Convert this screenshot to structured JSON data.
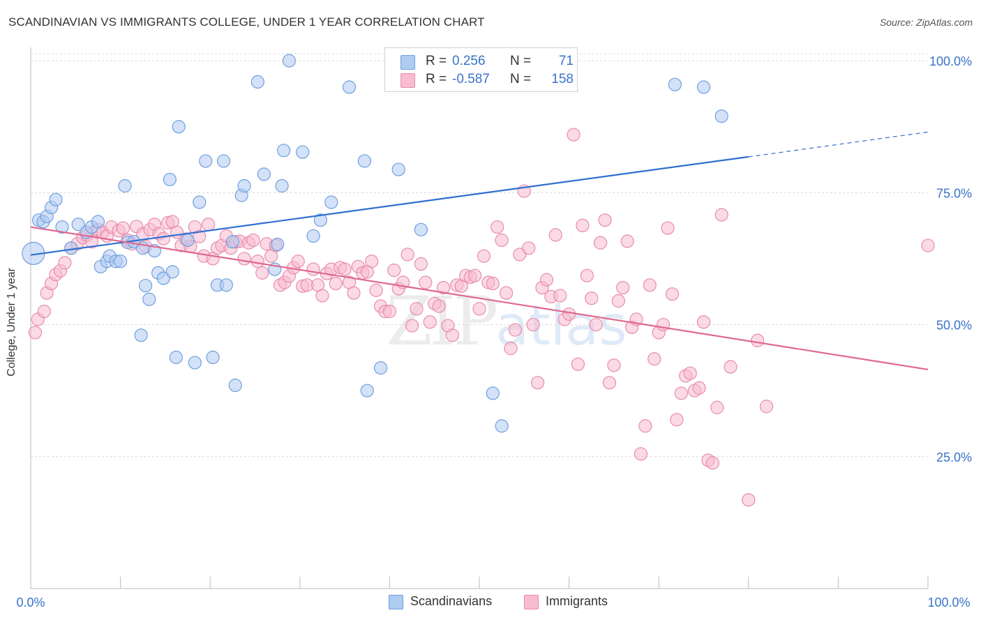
{
  "header": {
    "title": "SCANDINAVIAN VS IMMIGRANTS COLLEGE, UNDER 1 YEAR CORRELATION CHART",
    "source": "Source: ZipAtlas.com"
  },
  "legend": {
    "rows": [
      {
        "r_label": "R =",
        "r_value": " 0.256",
        "n_label": "N =",
        "n_value": "71"
      },
      {
        "r_label": "R =",
        "r_value": "-0.587",
        "n_label": "N =",
        "n_value": "158"
      }
    ]
  },
  "watermark": {
    "zip": "ZIP",
    "atlas": "atlas"
  },
  "colors": {
    "blue_fill": "#aecbf2",
    "blue_stroke": "#6f9fdc",
    "blue_line": "#2f6fd0",
    "pink_fill": "#f7bcd0",
    "pink_stroke": "#e88bab",
    "pink_line": "#e0688f",
    "axis_text": "#3a73c8",
    "grid": "#d8d8d8"
  },
  "chart_data": {
    "type": "scatter",
    "title": "SCANDINAVIAN VS IMMIGRANTS COLLEGE, UNDER 1 YEAR CORRELATION CHART",
    "xlabel": "",
    "ylabel": "College, Under 1 year",
    "xlim": [
      0,
      100
    ],
    "ylim": [
      0,
      102
    ],
    "x_tick_labels": [
      "0.0%",
      "100.0%"
    ],
    "y_ticks": [
      {
        "value": 25,
        "label": "25.0%"
      },
      {
        "value": 50,
        "label": "50.0%"
      },
      {
        "value": 75,
        "label": "75.0%"
      },
      {
        "value": 100,
        "label": "100.0%"
      }
    ],
    "x_minor_ticks": [
      0,
      10,
      20,
      30,
      40,
      50,
      60,
      70,
      80,
      90,
      100
    ],
    "grid": true,
    "series": [
      {
        "name": "Scandinavians",
        "r": 0.256,
        "n": 71,
        "trend": {
          "x0": 0,
          "y0": 63.2,
          "x1": 80,
          "y1": 81.8,
          "dash_to_x": 100,
          "dash_to_y": 86.5
        },
        "points": [
          [
            0.3,
            63.5
          ],
          [
            0.9,
            69.8
          ],
          [
            1.4,
            69.5
          ],
          [
            1.8,
            70.5
          ],
          [
            2.3,
            72.2
          ],
          [
            2.8,
            73.7
          ],
          [
            3.5,
            68.5
          ],
          [
            4.5,
            64.5
          ],
          [
            5.3,
            69.0
          ],
          [
            6.2,
            67.5
          ],
          [
            6.8,
            68.5
          ],
          [
            7.5,
            69.5
          ],
          [
            7.8,
            61.0
          ],
          [
            8.5,
            62.0
          ],
          [
            8.8,
            63.0
          ],
          [
            9.5,
            62.0
          ],
          [
            10.0,
            62.0
          ],
          [
            10.5,
            76.3
          ],
          [
            10.8,
            65.6
          ],
          [
            11.5,
            65.7
          ],
          [
            12.3,
            48.0
          ],
          [
            12.5,
            64.5
          ],
          [
            12.8,
            57.4
          ],
          [
            13.2,
            54.8
          ],
          [
            13.8,
            64.0
          ],
          [
            14.2,
            59.8
          ],
          [
            14.8,
            58.8
          ],
          [
            15.5,
            77.5
          ],
          [
            15.8,
            60.0
          ],
          [
            16.2,
            43.8
          ],
          [
            16.5,
            87.5
          ],
          [
            17.5,
            66.0
          ],
          [
            18.3,
            42.8
          ],
          [
            18.8,
            73.2
          ],
          [
            19.5,
            81.0
          ],
          [
            20.3,
            43.8
          ],
          [
            20.8,
            57.5
          ],
          [
            21.5,
            81.0
          ],
          [
            21.8,
            57.5
          ],
          [
            22.5,
            65.7
          ],
          [
            22.8,
            38.5
          ],
          [
            23.5,
            74.5
          ],
          [
            23.8,
            76.3
          ],
          [
            25.3,
            96.0
          ],
          [
            26.0,
            78.5
          ],
          [
            27.2,
            60.5
          ],
          [
            27.5,
            65.2
          ],
          [
            28.0,
            76.3
          ],
          [
            28.2,
            83.0
          ],
          [
            28.8,
            100.0
          ],
          [
            30.3,
            82.7
          ],
          [
            31.5,
            66.8
          ],
          [
            32.3,
            69.8
          ],
          [
            33.5,
            73.2
          ],
          [
            35.5,
            95.0
          ],
          [
            37.2,
            81.0
          ],
          [
            37.5,
            37.5
          ],
          [
            39.0,
            41.8
          ],
          [
            41.0,
            79.4
          ],
          [
            43.5,
            68.0
          ],
          [
            47.3,
            100.0
          ],
          [
            51.5,
            37.0
          ],
          [
            52.5,
            30.8
          ],
          [
            71.8,
            95.5
          ],
          [
            75.0,
            95.0
          ],
          [
            77.0,
            89.5
          ]
        ]
      },
      {
        "name": "Immigrants",
        "r": -0.587,
        "n": 158,
        "trend": {
          "x0": 0,
          "y0": 68.5,
          "x1": 100,
          "y1": 41.5
        },
        "points": [
          [
            0.5,
            48.5
          ],
          [
            0.8,
            51.0
          ],
          [
            1.5,
            52.5
          ],
          [
            1.8,
            56.0
          ],
          [
            2.3,
            57.8
          ],
          [
            2.8,
            59.5
          ],
          [
            3.3,
            60.2
          ],
          [
            3.8,
            61.7
          ],
          [
            4.5,
            64.5
          ],
          [
            5.2,
            65.3
          ],
          [
            5.8,
            66.5
          ],
          [
            6.3,
            67.0
          ],
          [
            6.8,
            65.7
          ],
          [
            7.2,
            67.8
          ],
          [
            7.5,
            68.0
          ],
          [
            8.0,
            67.5
          ],
          [
            8.5,
            66.8
          ],
          [
            9.0,
            68.5
          ],
          [
            9.8,
            67.8
          ],
          [
            10.3,
            68.3
          ],
          [
            10.8,
            66.0
          ],
          [
            11.3,
            65.3
          ],
          [
            11.8,
            68.6
          ],
          [
            12.5,
            67.2
          ],
          [
            12.8,
            64.8
          ],
          [
            13.3,
            68.0
          ],
          [
            13.8,
            69.0
          ],
          [
            14.3,
            67.2
          ],
          [
            14.8,
            66.3
          ],
          [
            15.3,
            69.3
          ],
          [
            15.8,
            69.5
          ],
          [
            16.3,
            67.5
          ],
          [
            16.8,
            65.0
          ],
          [
            17.3,
            66.2
          ],
          [
            17.8,
            64.8
          ],
          [
            18.3,
            68.5
          ],
          [
            18.8,
            66.7
          ],
          [
            19.3,
            63.0
          ],
          [
            19.8,
            69.0
          ],
          [
            20.3,
            62.5
          ],
          [
            20.8,
            64.5
          ],
          [
            21.3,
            65.0
          ],
          [
            21.8,
            66.8
          ],
          [
            22.3,
            64.5
          ],
          [
            22.8,
            65.7
          ],
          [
            23.3,
            65.8
          ],
          [
            23.8,
            62.5
          ],
          [
            24.3,
            65.5
          ],
          [
            24.8,
            66.0
          ],
          [
            25.3,
            62.0
          ],
          [
            25.8,
            59.8
          ],
          [
            26.3,
            65.3
          ],
          [
            26.8,
            63.0
          ],
          [
            27.3,
            65.0
          ],
          [
            27.8,
            57.5
          ],
          [
            28.3,
            58.0
          ],
          [
            28.8,
            59.2
          ],
          [
            29.3,
            60.8
          ],
          [
            29.8,
            62.0
          ],
          [
            30.3,
            57.3
          ],
          [
            30.8,
            57.5
          ],
          [
            31.5,
            60.5
          ],
          [
            32.0,
            57.5
          ],
          [
            32.5,
            55.5
          ],
          [
            33.0,
            59.7
          ],
          [
            33.5,
            60.5
          ],
          [
            34.0,
            57.8
          ],
          [
            34.5,
            60.8
          ],
          [
            35.0,
            60.5
          ],
          [
            35.5,
            58.0
          ],
          [
            36.0,
            56.0
          ],
          [
            36.5,
            61.0
          ],
          [
            37.0,
            59.8
          ],
          [
            37.5,
            60.0
          ],
          [
            38.0,
            62.0
          ],
          [
            38.5,
            56.5
          ],
          [
            39.0,
            53.5
          ],
          [
            39.5,
            52.5
          ],
          [
            40.0,
            52.5
          ],
          [
            40.5,
            60.3
          ],
          [
            41.0,
            56.8
          ],
          [
            41.5,
            58.0
          ],
          [
            42.0,
            63.3
          ],
          [
            42.5,
            49.8
          ],
          [
            43.0,
            53.0
          ],
          [
            43.5,
            61.5
          ],
          [
            44.0,
            58.0
          ],
          [
            44.5,
            50.5
          ],
          [
            45.0,
            54.0
          ],
          [
            45.5,
            53.5
          ],
          [
            46.0,
            57.0
          ],
          [
            46.5,
            49.8
          ],
          [
            47.0,
            48.0
          ],
          [
            47.5,
            57.5
          ],
          [
            48.0,
            57.3
          ],
          [
            48.5,
            59.3
          ],
          [
            49.0,
            59.0
          ],
          [
            49.5,
            59.3
          ],
          [
            50.0,
            53.0
          ],
          [
            50.5,
            63.0
          ],
          [
            51.0,
            58.0
          ],
          [
            51.5,
            57.8
          ],
          [
            52.0,
            68.5
          ],
          [
            52.5,
            66.0
          ],
          [
            53.0,
            56.0
          ],
          [
            53.5,
            45.5
          ],
          [
            54.0,
            49.0
          ],
          [
            54.5,
            63.3
          ],
          [
            55.0,
            75.3
          ],
          [
            55.5,
            64.5
          ],
          [
            56.0,
            50.0
          ],
          [
            56.5,
            39.0
          ],
          [
            57.0,
            57.0
          ],
          [
            57.5,
            58.5
          ],
          [
            58.0,
            55.3
          ],
          [
            58.5,
            67.0
          ],
          [
            59.0,
            55.5
          ],
          [
            59.5,
            51.0
          ],
          [
            60.0,
            52.0
          ],
          [
            60.5,
            86.0
          ],
          [
            61.0,
            42.5
          ],
          [
            61.5,
            68.8
          ],
          [
            62.0,
            59.3
          ],
          [
            62.5,
            55.0
          ],
          [
            63.0,
            50.0
          ],
          [
            63.5,
            65.5
          ],
          [
            64.0,
            69.8
          ],
          [
            64.5,
            39.0
          ],
          [
            65.0,
            42.3
          ],
          [
            65.5,
            54.5
          ],
          [
            66.0,
            57.0
          ],
          [
            66.5,
            65.8
          ],
          [
            67.0,
            49.5
          ],
          [
            67.5,
            51.0
          ],
          [
            68.0,
            25.5
          ],
          [
            68.5,
            30.8
          ],
          [
            69.0,
            57.5
          ],
          [
            69.5,
            43.5
          ],
          [
            70.0,
            48.5
          ],
          [
            70.5,
            50.0
          ],
          [
            71.0,
            68.3
          ],
          [
            71.5,
            55.8
          ],
          [
            72.0,
            32.0
          ],
          [
            72.5,
            37.0
          ],
          [
            73.0,
            40.3
          ],
          [
            73.5,
            40.8
          ],
          [
            74.0,
            37.5
          ],
          [
            74.5,
            38.0
          ],
          [
            75.0,
            50.5
          ],
          [
            75.5,
            24.3
          ],
          [
            76.0,
            23.8
          ],
          [
            76.5,
            34.3
          ],
          [
            77.0,
            70.8
          ],
          [
            78.0,
            42.0
          ],
          [
            80.0,
            16.8
          ],
          [
            81.0,
            47.0
          ],
          [
            82.0,
            34.5
          ],
          [
            100.0,
            65.0
          ]
        ]
      }
    ]
  },
  "bottom_legend": {
    "items": [
      {
        "label": "Scandinavians"
      },
      {
        "label": "Immigrants"
      }
    ]
  }
}
